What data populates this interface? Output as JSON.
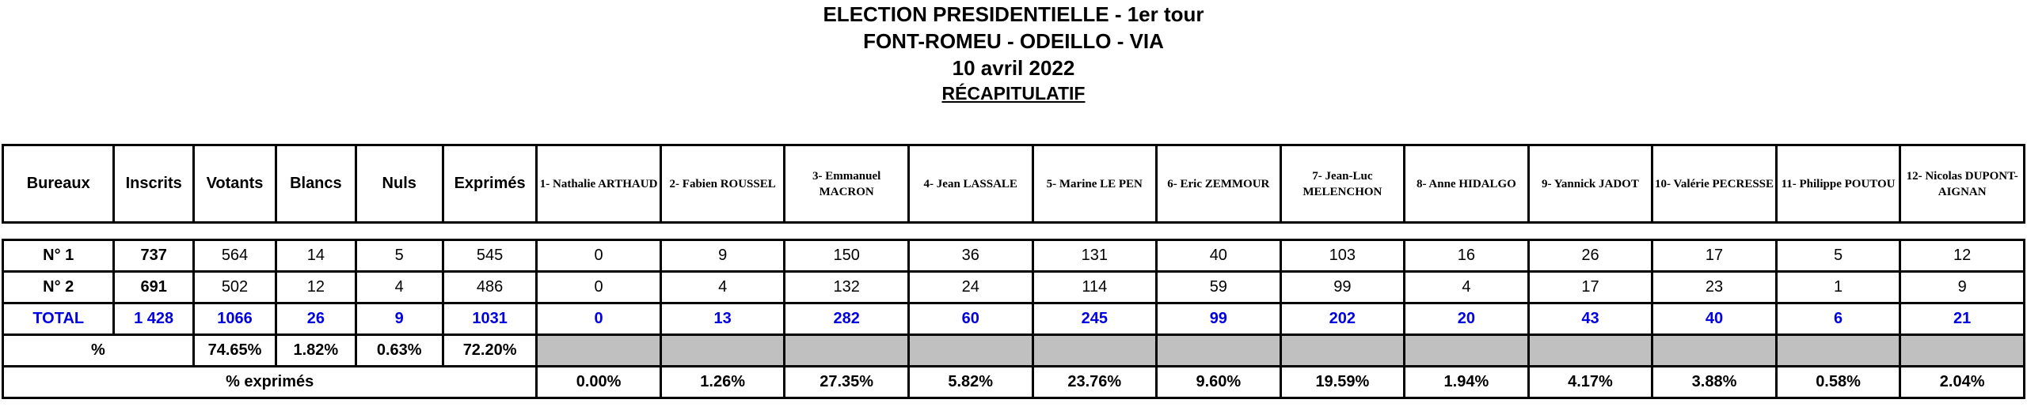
{
  "header": {
    "title": "ELECTION PRESIDENTIELLE - 1er tour",
    "commune": "FONT-ROMEU - ODEILLO - VIA",
    "date": "10 avril 2022",
    "subtitle": "RÉCAPITULATIF"
  },
  "columns": {
    "bureaux": "Bureaux",
    "inscrits": "Inscrits",
    "votants": "Votants",
    "blancs": "Blancs",
    "nuls": "Nuls",
    "exprimes": "Exprimés",
    "candidates": [
      "1- Nathalie ARTHAUD",
      "2- Fabien ROUSSEL",
      "3- Emmanuel MACRON",
      "4- Jean LASSALE",
      "5- Marine LE PEN",
      "6- Eric ZEMMOUR",
      "7- Jean-Luc MELENCHON",
      "8- Anne HIDALGO",
      "9- Yannick JADOT",
      "10- Valérie PECRESSE",
      "11- Philippe POUTOU",
      "12- Nicolas DUPONT-AIGNAN"
    ]
  },
  "rows": [
    {
      "bureau": "N° 1",
      "inscrits": "737",
      "votants": "564",
      "blancs": "14",
      "nuls": "5",
      "exprimes": "545",
      "votes": [
        "0",
        "9",
        "150",
        "36",
        "131",
        "40",
        "103",
        "16",
        "26",
        "17",
        "5",
        "12"
      ]
    },
    {
      "bureau": "N° 2",
      "inscrits": "691",
      "votants": "502",
      "blancs": "12",
      "nuls": "4",
      "exprimes": "486",
      "votes": [
        "0",
        "4",
        "132",
        "24",
        "114",
        "59",
        "99",
        "4",
        "17",
        "23",
        "1",
        "9"
      ]
    }
  ],
  "total": {
    "label": "TOTAL",
    "inscrits": "1 428",
    "votants": "1066",
    "blancs": "26",
    "nuls": "9",
    "exprimes": "1031",
    "votes": [
      "0",
      "13",
      "282",
      "60",
      "245",
      "99",
      "202",
      "20",
      "43",
      "40",
      "6",
      "21"
    ]
  },
  "percent": {
    "label": "%",
    "votants": "74.65%",
    "blancs": "1.82%",
    "nuls": "0.63%",
    "exprimes": "72.20%"
  },
  "percent_exprimes": {
    "label": "% exprimés",
    "values": [
      "0.00%",
      "1.26%",
      "27.35%",
      "5.82%",
      "23.76%",
      "9.60%",
      "19.59%",
      "1.94%",
      "4.17%",
      "3.88%",
      "0.58%",
      "2.04%"
    ]
  },
  "colors": {
    "total_text": "#0000e0",
    "empty_cell": "#c0c0c0",
    "border": "#000000"
  }
}
